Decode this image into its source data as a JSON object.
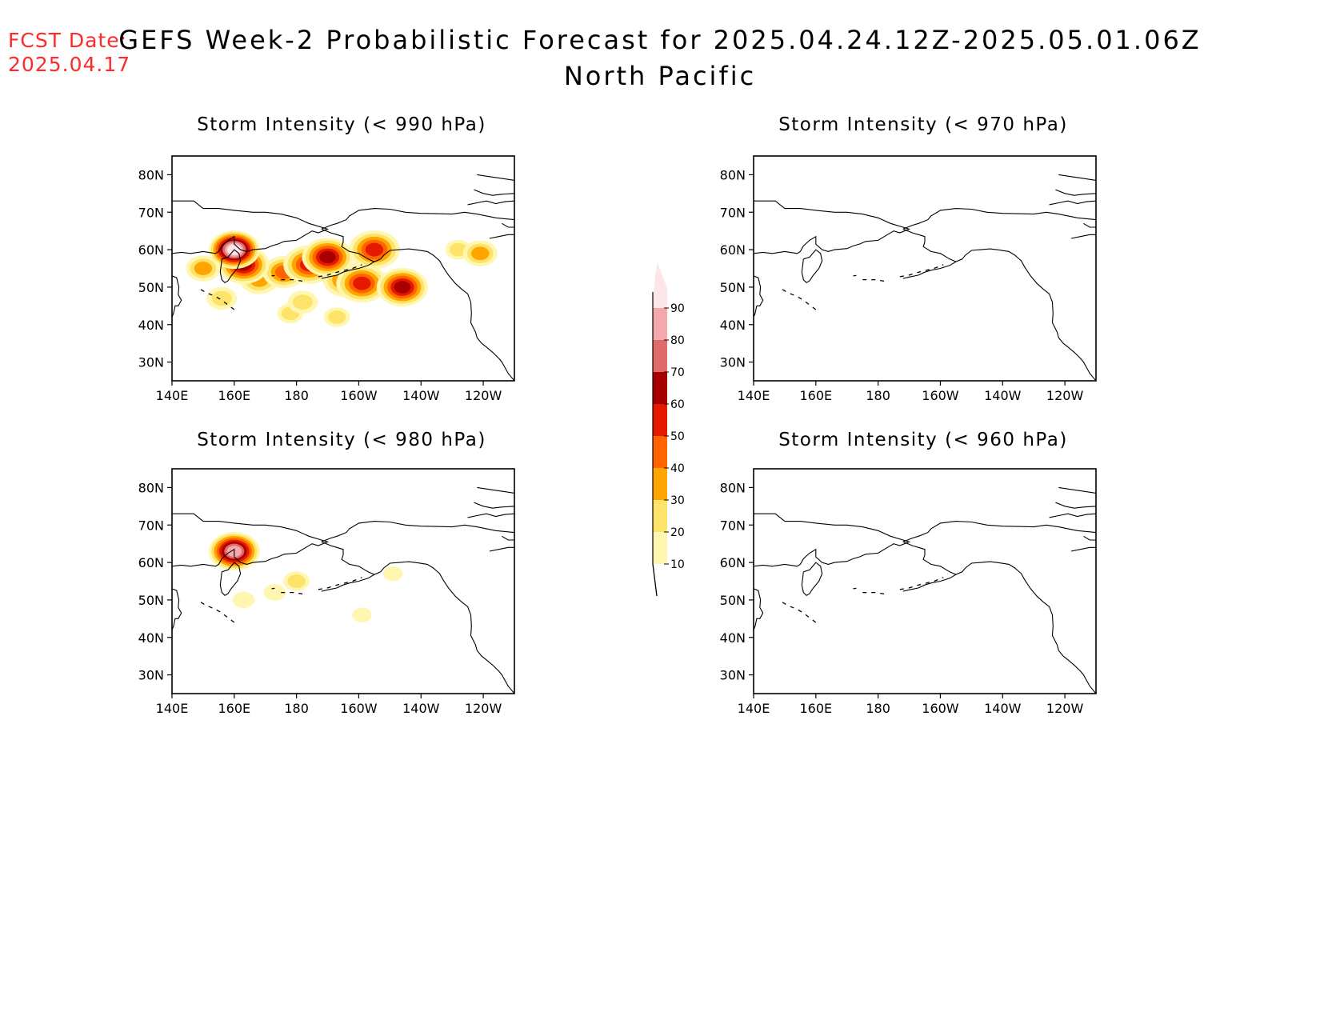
{
  "header": {
    "fcst_label": "FCST Date:",
    "fcst_date": "2025.04.17",
    "title_line1": "GEFS Week-2 Probabilistic Forecast for 2025.04.24.12Z-2025.05.01.06Z",
    "title_line2": "North Pacific"
  },
  "axes": {
    "lon_ticks": [
      "140E",
      "160E",
      "180",
      "160W",
      "140W",
      "120W"
    ],
    "lat_ticks": [
      "80N",
      "70N",
      "60N",
      "50N",
      "40N",
      "30N"
    ]
  },
  "panels": [
    {
      "title": "Storm Intensity (< 990 hPa)",
      "probability_blobs": [
        {
          "lon": 160,
          "lat": 60,
          "prob": 95
        },
        {
          "lon": 163,
          "lat": 56,
          "prob": 60
        },
        {
          "lon": 150,
          "lat": 55,
          "prob": 30
        },
        {
          "lon": 156,
          "lat": 47,
          "prob": 25
        },
        {
          "lon": 168,
          "lat": 52,
          "prob": 35
        },
        {
          "lon": 176,
          "lat": 54,
          "prob": 40
        },
        {
          "lon": 184,
          "lat": 56,
          "prob": 55
        },
        {
          "lon": 190,
          "lat": 58,
          "prob": 60
        },
        {
          "lon": 196,
          "lat": 52,
          "prob": 45
        },
        {
          "lon": 182,
          "lat": 46,
          "prob": 25
        },
        {
          "lon": 201,
          "lat": 51,
          "prob": 50
        },
        {
          "lon": 205,
          "lat": 60,
          "prob": 55
        },
        {
          "lon": 214,
          "lat": 50,
          "prob": 60
        },
        {
          "lon": 193,
          "lat": 42,
          "prob": 20
        },
        {
          "lon": 178,
          "lat": 43,
          "prob": 20
        },
        {
          "lon": 239,
          "lat": 59,
          "prob": 30
        },
        {
          "lon": 232,
          "lat": 60,
          "prob": 20
        }
      ]
    },
    {
      "title": "Storm Intensity (< 970 hPa)",
      "probability_blobs": []
    },
    {
      "title": "Storm Intensity (< 980 hPa)",
      "probability_blobs": [
        {
          "lon": 160,
          "lat": 63,
          "prob": 85
        },
        {
          "lon": 180,
          "lat": 55,
          "prob": 20
        },
        {
          "lon": 173,
          "lat": 52,
          "prob": 15
        },
        {
          "lon": 163,
          "lat": 50,
          "prob": 15
        },
        {
          "lon": 201,
          "lat": 46,
          "prob": 12
        },
        {
          "lon": 211,
          "lat": 57,
          "prob": 12
        }
      ]
    },
    {
      "title": "Storm Intensity (< 960 hPa)",
      "probability_blobs": []
    }
  ],
  "colorbar": {
    "levels": [
      "10",
      "20",
      "30",
      "40",
      "50",
      "60",
      "70",
      "80",
      "90"
    ],
    "colors": [
      "#fff7b0",
      "#fde36a",
      "#fea500",
      "#ff6400",
      "#e41a00",
      "#a80000",
      "#e06b6b",
      "#f4a8ab",
      "#fde6e8"
    ]
  },
  "colors": {
    "fcst": "#ff2a2a",
    "coast": "#000000"
  }
}
